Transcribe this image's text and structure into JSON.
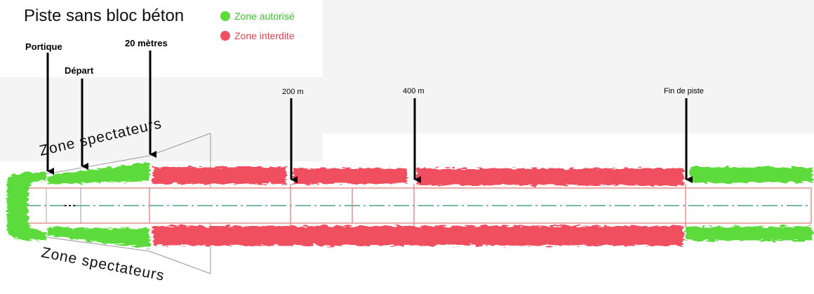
{
  "title": "Piste sans bloc béton",
  "legend": [
    {
      "label": "Zone autorisé",
      "color": "#5ddb3c"
    },
    {
      "label": "Zone interdite",
      "color": "#f05060"
    }
  ],
  "markers": {
    "portique": "Portique",
    "depart": "Départ",
    "m20": "20 mètres",
    "m200": "200 m",
    "m400": "400 m",
    "fin": "Fin de piste"
  },
  "spectators_top": "Zone spectateurs",
  "spectators_bottom": "Zone spectateurs"
}
